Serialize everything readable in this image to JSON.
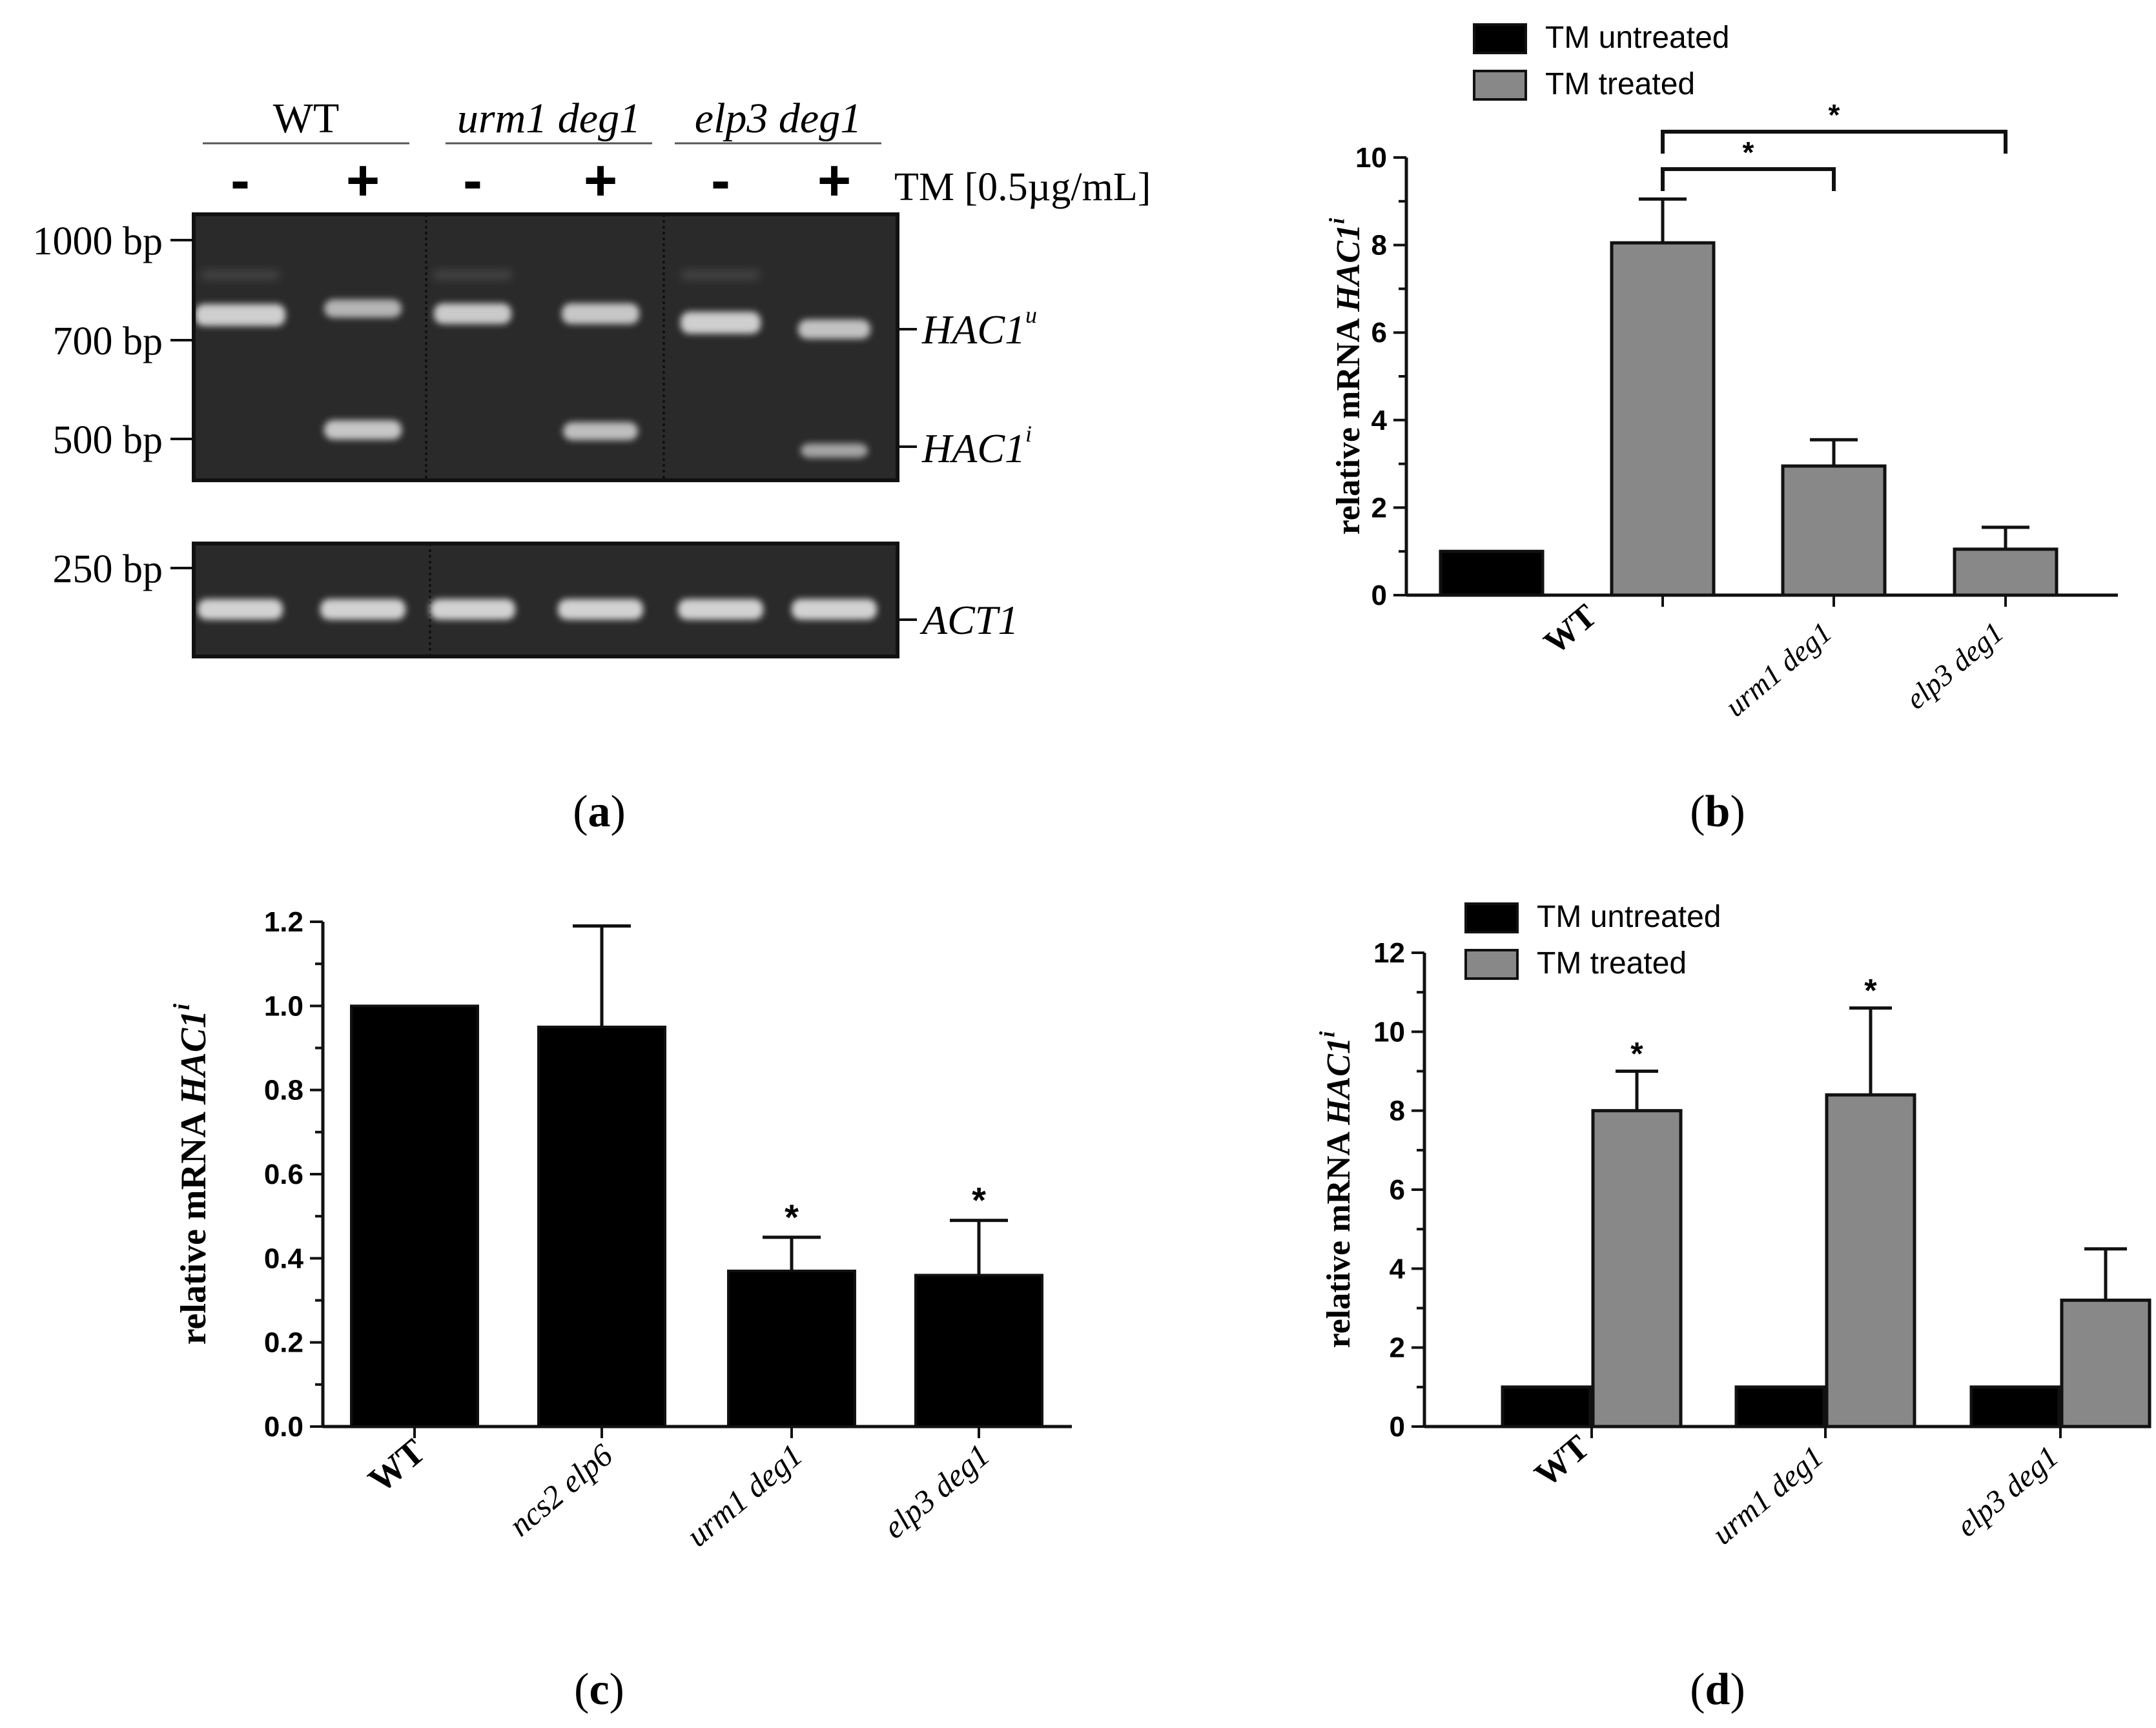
{
  "panels": {
    "a": {
      "label_letter": "a",
      "groups": [
        {
          "name": "WT",
          "italic": false
        },
        {
          "name": "urm1 deg1",
          "italic": true
        },
        {
          "name": "elp3 deg1",
          "italic": true
        }
      ],
      "treatments": [
        "-",
        "+",
        "-",
        "+",
        "-",
        "+"
      ],
      "tm_label": "TM [0.5µg/mL]",
      "markers_top": [
        "1000 bp",
        "700 bp",
        "500 bp"
      ],
      "markers_bottom": [
        "250 bp"
      ],
      "band_labels": {
        "hac1u_main": "HAC1",
        "hac1u_sup": "u",
        "hac1i_main": "HAC1",
        "hac1i_sup": "i",
        "act1": "ACT1"
      }
    },
    "b": {
      "label_letter": "b"
    },
    "c": {
      "label_letter": "c"
    },
    "d": {
      "label_letter": "d"
    }
  },
  "chart_data": [
    {
      "panel": "b",
      "type": "bar",
      "ylabel_main": "relative mRNA ",
      "ylabel_italic": "HAC1",
      "ylabel_sup": "i",
      "ylim": [
        0,
        10
      ],
      "yticks": [
        "0",
        "2",
        "4",
        "6",
        "8",
        "10"
      ],
      "legend": [
        "TM untreated",
        "TM treated"
      ],
      "legend_position": "top-left",
      "colors": {
        "untreated": "#000000",
        "treated": "#888888"
      },
      "categories": [
        {
          "name": "WT",
          "italic": false
        },
        {
          "name": "urm1 deg1",
          "italic": true
        },
        {
          "name": "elp3 deg1",
          "italic": true
        }
      ],
      "bars": [
        {
          "series": "TM untreated",
          "value": 1.0,
          "error": 0
        },
        {
          "series": "TM treated",
          "value": 8.05,
          "error": 1.0
        },
        {
          "series": "TM treated",
          "value": 2.95,
          "error": 0.6
        },
        {
          "series": "TM treated",
          "value": 1.05,
          "error": 0.5
        }
      ],
      "significance": [
        {
          "from_bar": 1,
          "to_bar": 2,
          "label": "*"
        },
        {
          "from_bar": 1,
          "to_bar": 3,
          "label": "*"
        }
      ]
    },
    {
      "panel": "c",
      "type": "bar",
      "ylabel_main": "relative mRNA ",
      "ylabel_italic": "HAC1",
      "ylabel_sup": "i",
      "ylim": [
        0,
        1.2
      ],
      "yticks": [
        "0.0",
        "0.2",
        "0.4",
        "0.6",
        "0.8",
        "1.0",
        "1.2"
      ],
      "colors": {
        "bar": "#000000"
      },
      "categories": [
        {
          "name": "WT",
          "italic": false
        },
        {
          "name": "ncs2 elp6",
          "italic": true
        },
        {
          "name": "urm1 deg1",
          "italic": true
        },
        {
          "name": "elp3 deg1",
          "italic": true
        }
      ],
      "values": [
        1.0,
        0.95,
        0.37,
        0.36
      ],
      "errors": [
        0,
        0.24,
        0.08,
        0.13
      ],
      "stars": [
        "",
        "",
        "*",
        "*"
      ]
    },
    {
      "panel": "d",
      "type": "bar",
      "ylabel_main": "relative mRNA ",
      "ylabel_italic": "HAC1",
      "ylabel_sup": "i",
      "ylim": [
        0,
        12
      ],
      "yticks": [
        "0",
        "2",
        "4",
        "6",
        "8",
        "10",
        "12"
      ],
      "legend": [
        "TM untreated",
        "TM treated"
      ],
      "legend_position": "top-left",
      "colors": {
        "untreated": "#000000",
        "treated": "#888888"
      },
      "categories": [
        {
          "name": "WT",
          "italic": false
        },
        {
          "name": "urm1 deg1",
          "italic": true
        },
        {
          "name": "elp3 deg1",
          "italic": true
        }
      ],
      "series": [
        {
          "name": "TM untreated",
          "values": [
            1.0,
            1.0,
            1.0
          ],
          "errors": [
            0,
            0,
            0
          ],
          "stars": [
            "",
            "",
            ""
          ]
        },
        {
          "name": "TM treated",
          "values": [
            8.0,
            8.4,
            3.2
          ],
          "errors": [
            1.0,
            2.2,
            1.3
          ],
          "stars": [
            "*",
            "*",
            ""
          ]
        }
      ]
    }
  ]
}
